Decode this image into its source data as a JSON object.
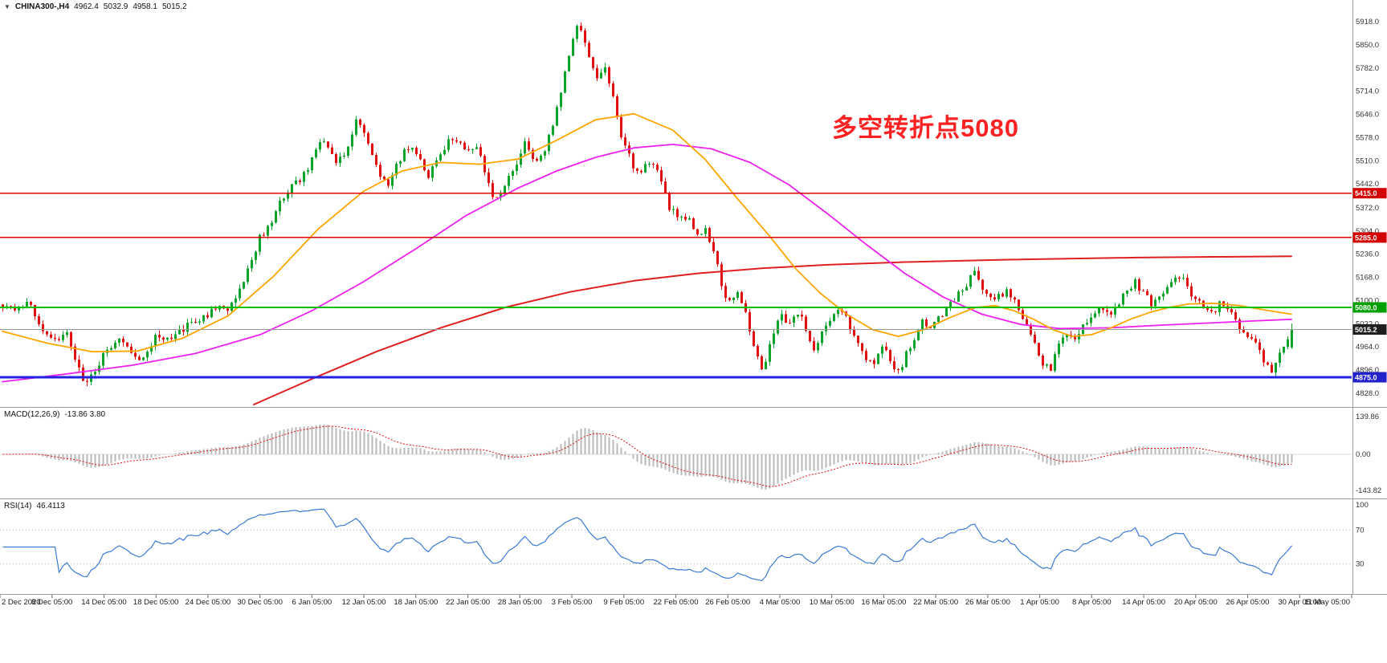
{
  "symbol_info": {
    "expander": "▼",
    "symbol": "CHINA300-,H4",
    "open": "4962.4",
    "high": "5032.9",
    "low": "4958.1",
    "close": "5015.2"
  },
  "annotation": {
    "text": "多空转折点5080",
    "color": "#ff2222"
  },
  "panels": {
    "macd": {
      "label": "MACD(12,26,9)",
      "values": "-13.86 3.80",
      "axis_labels": [
        "139.86",
        "0.00",
        "-143.82"
      ],
      "signal_color": "#e01010",
      "hist_color": "#b8b8b8"
    },
    "rsi": {
      "label": "RSI(14)",
      "value": "46.4113",
      "axis_labels": [
        "100",
        "70",
        "30"
      ],
      "levels": [
        70,
        30
      ],
      "line_color": "#3a7bd5"
    }
  },
  "chart_data": {
    "type": "candlestick",
    "title": "CHINA300-,H4",
    "symbol": "CHINA300-",
    "timeframe": "H4",
    "last_ohlc": {
      "open": 4962.4,
      "high": 5032.9,
      "low": 4958.1,
      "close": 5015.2
    },
    "price_range": [
      4828,
      5918
    ],
    "y_ticks": [
      "5918.0",
      "5850.0",
      "5782.0",
      "5714.0",
      "5646.0",
      "5578.0",
      "5510.0",
      "5442.0",
      "5372.0",
      "5304.0",
      "5236.0",
      "5168.0",
      "5100.0",
      "5032.0",
      "4964.0",
      "4896.0",
      "4828.0"
    ],
    "x_labels": [
      "2 Dec 2020",
      "8 Dec 05:00",
      "14 Dec 05:00",
      "18 Dec 05:00",
      "24 Dec 05:00",
      "30 Dec 05:00",
      "6 Jan 05:00",
      "12 Jan 05:00",
      "18 Jan 05:00",
      "22 Jan 05:00",
      "28 Jan 05:00",
      "3 Feb 05:00",
      "9 Feb 05:00",
      "22 Feb 05:00",
      "26 Feb 05:00",
      "4 Mar 05:00",
      "10 Mar 05:00",
      "16 Mar 05:00",
      "22 Mar 05:00",
      "26 Mar 05:00",
      "1 Apr 05:00",
      "8 Apr 05:00",
      "14 Apr 05:00",
      "20 Apr 05:00",
      "26 Apr 05:00",
      "30 Apr 05:00",
      "11 May 05:00"
    ],
    "levels": [
      {
        "price": 5415,
        "label": "5415.0",
        "color": "#e00000",
        "badge": "#d40000",
        "width": 1.6
      },
      {
        "price": 5285,
        "label": "5285.0",
        "color": "#e00000",
        "badge": "#d40000",
        "width": 1.6
      },
      {
        "price": 5080,
        "label": "5080.0",
        "color": "#00c000",
        "badge": "#00a000",
        "width": 2
      },
      {
        "price": 5015.2,
        "label": "5015.2",
        "color": "#9a9a9a",
        "badge": "#1f1f1f",
        "width": 1
      },
      {
        "price": 4875,
        "label": "4875.0",
        "color": "#2222e0",
        "badge": "#2222cc",
        "width": 3
      }
    ],
    "price_path": [
      [
        0,
        5085
      ],
      [
        0.01,
        5065
      ],
      [
        0.02,
        5090
      ],
      [
        0.03,
        5025
      ],
      [
        0.04,
        4985
      ],
      [
        0.05,
        5005
      ],
      [
        0.056,
        4925
      ],
      [
        0.065,
        4855
      ],
      [
        0.072,
        4900
      ],
      [
        0.081,
        4960
      ],
      [
        0.09,
        4990
      ],
      [
        0.099,
        4945
      ],
      [
        0.108,
        4935
      ],
      [
        0.119,
        4995
      ],
      [
        0.128,
        4980
      ],
      [
        0.137,
        5015
      ],
      [
        0.146,
        5030
      ],
      [
        0.155,
        5045
      ],
      [
        0.164,
        5080
      ],
      [
        0.173,
        5070
      ],
      [
        0.182,
        5120
      ],
      [
        0.191,
        5200
      ],
      [
        0.2,
        5290
      ],
      [
        0.209,
        5330
      ],
      [
        0.218,
        5410
      ],
      [
        0.227,
        5445
      ],
      [
        0.236,
        5480
      ],
      [
        0.245,
        5560
      ],
      [
        0.252,
        5555
      ],
      [
        0.259,
        5495
      ],
      [
        0.266,
        5535
      ],
      [
        0.275,
        5638
      ],
      [
        0.283,
        5575
      ],
      [
        0.292,
        5465
      ],
      [
        0.3,
        5440
      ],
      [
        0.308,
        5515
      ],
      [
        0.315,
        5555
      ],
      [
        0.322,
        5535
      ],
      [
        0.33,
        5455
      ],
      [
        0.337,
        5515
      ],
      [
        0.346,
        5575
      ],
      [
        0.353,
        5570
      ],
      [
        0.36,
        5535
      ],
      [
        0.367,
        5555
      ],
      [
        0.374,
        5475
      ],
      [
        0.382,
        5395
      ],
      [
        0.389,
        5435
      ],
      [
        0.396,
        5485
      ],
      [
        0.405,
        5555
      ],
      [
        0.412,
        5505
      ],
      [
        0.421,
        5545
      ],
      [
        0.428,
        5625
      ],
      [
        0.436,
        5760
      ],
      [
        0.443,
        5870
      ],
      [
        0.447,
        5920
      ],
      [
        0.454,
        5830
      ],
      [
        0.46,
        5755
      ],
      [
        0.467,
        5785
      ],
      [
        0.473,
        5700
      ],
      [
        0.481,
        5565
      ],
      [
        0.489,
        5495
      ],
      [
        0.497,
        5480
      ],
      [
        0.503,
        5520
      ],
      [
        0.511,
        5460
      ],
      [
        0.517,
        5375
      ],
      [
        0.525,
        5330
      ],
      [
        0.532,
        5350
      ],
      [
        0.538,
        5285
      ],
      [
        0.545,
        5310
      ],
      [
        0.552,
        5240
      ],
      [
        0.558,
        5140
      ],
      [
        0.565,
        5085
      ],
      [
        0.571,
        5120
      ],
      [
        0.578,
        5035
      ],
      [
        0.585,
        4945
      ],
      [
        0.59,
        4895
      ],
      [
        0.597,
        4990
      ],
      [
        0.603,
        5055
      ],
      [
        0.61,
        5035
      ],
      [
        0.616,
        5075
      ],
      [
        0.623,
        5015
      ],
      [
        0.63,
        4960
      ],
      [
        0.636,
        5010
      ],
      [
        0.643,
        5060
      ],
      [
        0.649,
        5080
      ],
      [
        0.656,
        5035
      ],
      [
        0.663,
        4985
      ],
      [
        0.669,
        4940
      ],
      [
        0.676,
        4915
      ],
      [
        0.682,
        4960
      ],
      [
        0.689,
        4925
      ],
      [
        0.695,
        4885
      ],
      [
        0.701,
        4945
      ],
      [
        0.708,
        5000
      ],
      [
        0.714,
        5040
      ],
      [
        0.721,
        5020
      ],
      [
        0.728,
        5060
      ],
      [
        0.734,
        5090
      ],
      [
        0.741,
        5115
      ],
      [
        0.747,
        5145
      ],
      [
        0.754,
        5180
      ],
      [
        0.76,
        5140
      ],
      [
        0.767,
        5100
      ],
      [
        0.774,
        5120
      ],
      [
        0.78,
        5130
      ],
      [
        0.787,
        5085
      ],
      [
        0.793,
        5035
      ],
      [
        0.8,
        4975
      ],
      [
        0.807,
        4915
      ],
      [
        0.812,
        4895
      ],
      [
        0.819,
        4965
      ],
      [
        0.825,
        5010
      ],
      [
        0.832,
        4990
      ],
      [
        0.839,
        5030
      ],
      [
        0.845,
        5060
      ],
      [
        0.852,
        5090
      ],
      [
        0.858,
        5060
      ],
      [
        0.865,
        5090
      ],
      [
        0.872,
        5130
      ],
      [
        0.878,
        5160
      ],
      [
        0.885,
        5120
      ],
      [
        0.891,
        5090
      ],
      [
        0.898,
        5110
      ],
      [
        0.905,
        5140
      ],
      [
        0.911,
        5180
      ],
      [
        0.918,
        5150
      ],
      [
        0.924,
        5110
      ],
      [
        0.931,
        5080
      ],
      [
        0.938,
        5060
      ],
      [
        0.944,
        5090
      ],
      [
        0.951,
        5070
      ],
      [
        0.957,
        5040
      ],
      [
        0.964,
        5000
      ],
      [
        0.971,
        4975
      ],
      [
        0.977,
        4935
      ],
      [
        0.984,
        4895
      ],
      [
        0.991,
        4940
      ],
      [
        1,
        5015.2
      ]
    ],
    "ma_orange": [
      [
        0,
        5010
      ],
      [
        0.035,
        4975
      ],
      [
        0.07,
        4950
      ],
      [
        0.105,
        4952
      ],
      [
        0.14,
        4990
      ],
      [
        0.175,
        5055
      ],
      [
        0.21,
        5170
      ],
      [
        0.245,
        5310
      ],
      [
        0.28,
        5420
      ],
      [
        0.31,
        5480
      ],
      [
        0.34,
        5505
      ],
      [
        0.37,
        5500
      ],
      [
        0.4,
        5515
      ],
      [
        0.43,
        5570
      ],
      [
        0.46,
        5630
      ],
      [
        0.49,
        5648
      ],
      [
        0.52,
        5600
      ],
      [
        0.545,
        5515
      ],
      [
        0.57,
        5400
      ],
      [
        0.595,
        5290
      ],
      [
        0.615,
        5195
      ],
      [
        0.635,
        5120
      ],
      [
        0.655,
        5060
      ],
      [
        0.675,
        5015
      ],
      [
        0.695,
        4995
      ],
      [
        0.715,
        5015
      ],
      [
        0.735,
        5050
      ],
      [
        0.755,
        5080
      ],
      [
        0.77,
        5085
      ],
      [
        0.785,
        5070
      ],
      [
        0.8,
        5045
      ],
      [
        0.815,
        5015
      ],
      [
        0.83,
        4995
      ],
      [
        0.845,
        5000
      ],
      [
        0.86,
        5020
      ],
      [
        0.875,
        5045
      ],
      [
        0.89,
        5065
      ],
      [
        0.905,
        5080
      ],
      [
        0.92,
        5090
      ],
      [
        0.94,
        5092
      ],
      [
        0.96,
        5085
      ],
      [
        0.98,
        5072
      ],
      [
        1,
        5060
      ]
    ],
    "ma_magenta": [
      [
        0,
        4862
      ],
      [
        0.05,
        4885
      ],
      [
        0.1,
        4910
      ],
      [
        0.15,
        4945
      ],
      [
        0.2,
        5000
      ],
      [
        0.24,
        5070
      ],
      [
        0.28,
        5155
      ],
      [
        0.32,
        5250
      ],
      [
        0.36,
        5350
      ],
      [
        0.4,
        5430
      ],
      [
        0.43,
        5480
      ],
      [
        0.46,
        5520
      ],
      [
        0.49,
        5548
      ],
      [
        0.52,
        5558
      ],
      [
        0.55,
        5545
      ],
      [
        0.58,
        5505
      ],
      [
        0.61,
        5440
      ],
      [
        0.64,
        5355
      ],
      [
        0.67,
        5265
      ],
      [
        0.7,
        5180
      ],
      [
        0.73,
        5110
      ],
      [
        0.76,
        5060
      ],
      [
        0.79,
        5030
      ],
      [
        0.82,
        5018
      ],
      [
        0.86,
        5020
      ],
      [
        0.9,
        5028
      ],
      [
        0.94,
        5035
      ],
      [
        0.97,
        5040
      ],
      [
        1,
        5045
      ]
    ],
    "ma_red": [
      [
        0.195,
        4795
      ],
      [
        0.24,
        4870
      ],
      [
        0.29,
        4950
      ],
      [
        0.34,
        5020
      ],
      [
        0.39,
        5080
      ],
      [
        0.44,
        5125
      ],
      [
        0.49,
        5158
      ],
      [
        0.54,
        5180
      ],
      [
        0.59,
        5195
      ],
      [
        0.64,
        5205
      ],
      [
        0.7,
        5213
      ],
      [
        0.78,
        5220
      ],
      [
        0.88,
        5226
      ],
      [
        1,
        5230
      ]
    ],
    "macd_current": {
      "macd": -13.86,
      "signal": 3.8
    },
    "rsi_current": 46.4113,
    "colors": {
      "up": "#0ca32a",
      "down": "#e01010",
      "ma_orange": "#ffa500",
      "ma_magenta": "#ee22ee",
      "ma_red": "#e02020",
      "macd_hist": "#b8b8b8",
      "macd_signal": "#e01010",
      "rsi": "#3a7bd5"
    }
  }
}
